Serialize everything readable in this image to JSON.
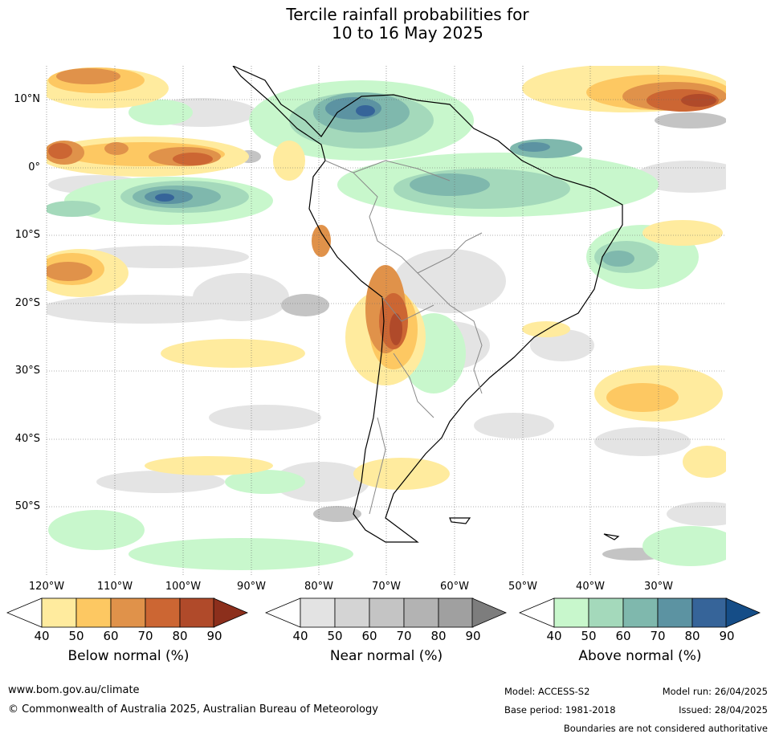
{
  "title_line1": "Tercile rainfall probabilities for",
  "title_line2": "10 to 16 May 2025",
  "lat_labels": [
    "10°N",
    "0°",
    "10°S",
    "20°S",
    "30°S",
    "40°S",
    "50°S"
  ],
  "lon_labels": [
    "120°W",
    "110°W",
    "100°W",
    "90°W",
    "80°W",
    "70°W",
    "60°W",
    "50°W",
    "40°W",
    "30°W"
  ],
  "colorbars": [
    {
      "title": "Below normal (%)",
      "ticks": [
        "40",
        "50",
        "60",
        "70",
        "80",
        "90"
      ],
      "colors": [
        "#ffeb9e",
        "#fdc862",
        "#e0924a",
        "#cc6633",
        "#b04a2a",
        "#8c2f1c"
      ]
    },
    {
      "title": "Near normal (%)",
      "ticks": [
        "40",
        "50",
        "60",
        "70",
        "80",
        "90"
      ],
      "colors": [
        "#e3e3e3",
        "#d4d4d4",
        "#c4c4c4",
        "#b3b3b3",
        "#a0a0a0",
        "#7d7d7d"
      ]
    },
    {
      "title": "Above normal (%)",
      "ticks": [
        "40",
        "50",
        "60",
        "70",
        "80",
        "90"
      ],
      "colors": [
        "#c8f7cc",
        "#a4d9bb",
        "#7fb8ad",
        "#5c93a2",
        "#366499",
        "#154d87"
      ]
    }
  ],
  "footer": {
    "website": "www.bom.gov.au/climate",
    "copyright": "© Commonwealth of Australia 2025, Australian Bureau of Meteorology",
    "model": "Model: ACCESS-S2",
    "base_period": "Base period: 1981-2018",
    "model_run": "Model run: 26/04/2025",
    "issued": "Issued: 28/04/2025",
    "disclaimer": "Boundaries are not considered authoritative"
  }
}
